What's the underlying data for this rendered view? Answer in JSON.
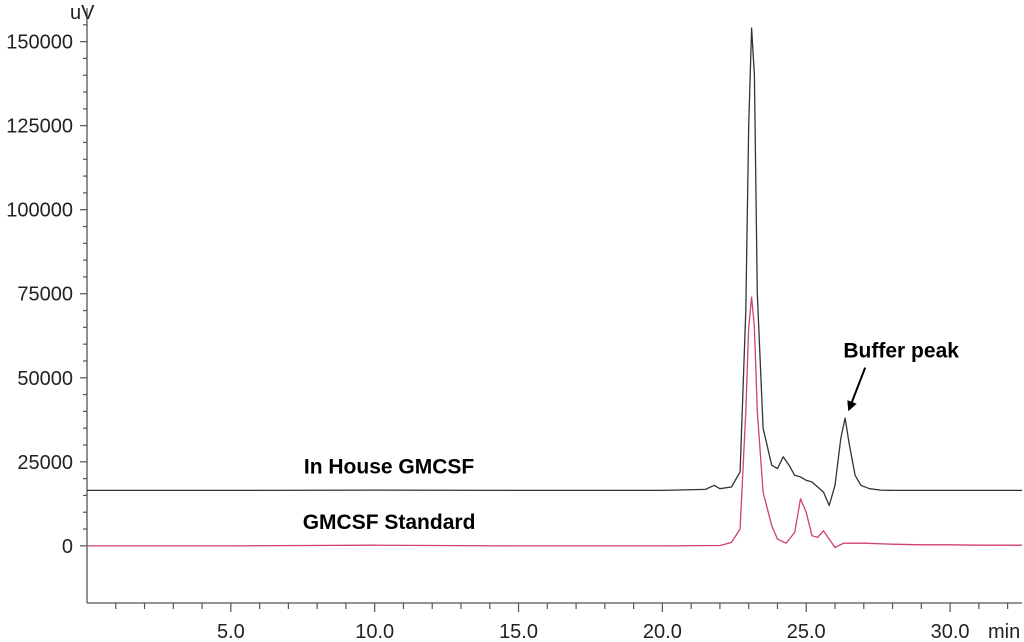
{
  "chart_data": {
    "type": "line",
    "title": "",
    "xlabel": "min",
    "ylabel": "uV",
    "xlim": [
      0.0,
      32.5
    ],
    "ylim": [
      -17000,
      160000
    ],
    "x_ticks": [
      5.0,
      10.0,
      15.0,
      20.0,
      25.0,
      30.0
    ],
    "x_tick_labels": [
      "5.0",
      "10.0",
      "15.0",
      "20.0",
      "25.0",
      "30.0"
    ],
    "y_ticks": [
      0,
      25000,
      50000,
      75000,
      100000,
      125000,
      150000
    ],
    "y_tick_labels": [
      "0",
      "25000",
      "50000",
      "75000",
      "100000",
      "125000",
      "150000"
    ],
    "grid": false,
    "legend": "none",
    "series": [
      {
        "name": "In House GMCSF",
        "color": "#333333",
        "x": [
          0.0,
          5.0,
          10.0,
          15.0,
          20.0,
          21.5,
          21.8,
          22.0,
          22.4,
          22.7,
          22.9,
          23.0,
          23.1,
          23.2,
          23.3,
          23.5,
          23.8,
          24.0,
          24.2,
          24.4,
          24.6,
          24.8,
          25.0,
          25.2,
          25.4,
          25.6,
          25.8,
          26.0,
          26.2,
          26.35,
          26.5,
          26.7,
          26.9,
          27.2,
          27.6,
          28.0,
          29.0,
          30.0,
          31.0,
          32.5
        ],
        "y": [
          16500,
          16500,
          16600,
          16500,
          16500,
          16800,
          18000,
          17000,
          17500,
          22000,
          70000,
          125000,
          154000,
          140000,
          75000,
          35000,
          24000,
          23000,
          26500,
          24000,
          21000,
          20500,
          19500,
          19000,
          17500,
          16000,
          12000,
          18000,
          32000,
          38000,
          30000,
          21000,
          18000,
          17000,
          16600,
          16500,
          16500,
          16500,
          16500,
          16500
        ]
      },
      {
        "name": "GMCSF Standard",
        "color": "#d04070",
        "x": [
          0.0,
          5.0,
          10.0,
          15.0,
          20.0,
          22.0,
          22.4,
          22.7,
          22.9,
          23.0,
          23.1,
          23.2,
          23.3,
          23.5,
          23.8,
          24.0,
          24.3,
          24.6,
          24.8,
          25.0,
          25.2,
          25.4,
          25.6,
          25.8,
          26.0,
          26.3,
          27.0,
          28.0,
          29.0,
          30.0,
          31.0,
          32.5
        ],
        "y": [
          0,
          0,
          200,
          0,
          0,
          100,
          1000,
          5000,
          40000,
          65000,
          74000,
          65000,
          40000,
          16000,
          6000,
          2000,
          800,
          4000,
          14000,
          10000,
          3000,
          2500,
          4500,
          2000,
          -500,
          800,
          800,
          500,
          300,
          300,
          200,
          200
        ]
      }
    ],
    "annotations": [
      {
        "text": "In House GMCSF",
        "x": 10.5,
        "y": 21500
      },
      {
        "text": "GMCSF Standard",
        "x": 10.5,
        "y": 5000
      },
      {
        "text": "Buffer peak",
        "x": 28.3,
        "y": 56000,
        "arrow_to": [
          26.35,
          40000
        ]
      }
    ]
  }
}
